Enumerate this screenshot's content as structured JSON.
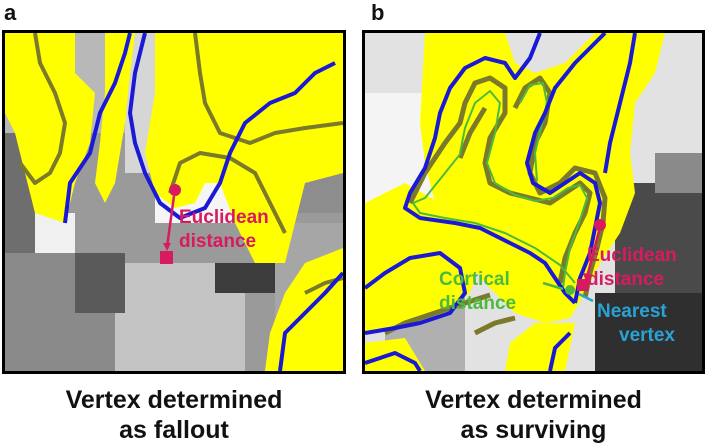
{
  "panel_a": {
    "letter": "a",
    "label_euclidean": [
      "Euclidean",
      "distance"
    ],
    "caption": [
      "Vertex determined",
      "as fallout"
    ]
  },
  "panel_b": {
    "letter": "b",
    "label_euclidean": [
      "Euclidean",
      "distance"
    ],
    "label_cortical": [
      "Cortical",
      "distance"
    ],
    "label_nearest": [
      "Nearest",
      "vertex"
    ],
    "caption": [
      "Vertex determined",
      "as surviving"
    ]
  },
  "colors": {
    "mask_yellow": "#ffff00",
    "pial_surface_blue": "#1a1ad6",
    "white_surface_olive": "#7a7a2a",
    "euclidean_label": "#d81b60",
    "cortical_label": "#4cbb3c",
    "nearest_label": "#29a3d6"
  }
}
